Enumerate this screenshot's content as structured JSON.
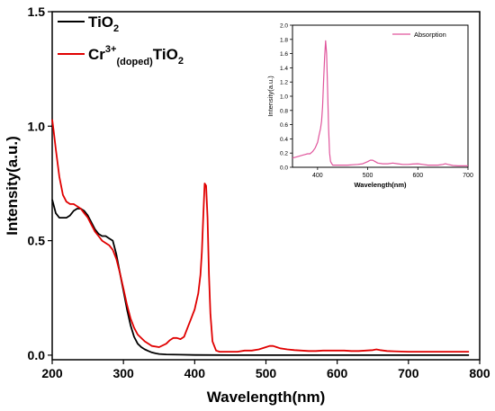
{
  "chart_data": [
    {
      "type": "line",
      "title": "",
      "xlabel": "Wavelength(nm)",
      "ylabel": "Intensity(a.u.)",
      "xlim": [
        200,
        800
      ],
      "ylim": [
        -0.02,
        1.5
      ],
      "xticks": [
        200,
        300,
        400,
        500,
        600,
        700,
        800
      ],
      "yticks": [
        0.0,
        0.5,
        1.0,
        1.5
      ],
      "ytick_labels": [
        "0.0",
        "0.5",
        "1.0",
        "1.5"
      ],
      "grid": false,
      "legend_position": "top-left",
      "series": [
        {
          "legend_main": "TiO",
          "legend_sub": "2",
          "color": "#000000",
          "x": [
            200,
            205,
            210,
            215,
            220,
            225,
            230,
            235,
            240,
            245,
            250,
            255,
            260,
            265,
            270,
            275,
            280,
            285,
            290,
            295,
            300,
            305,
            310,
            315,
            320,
            325,
            330,
            335,
            340,
            345,
            350,
            360,
            380,
            400,
            450,
            500,
            550,
            600,
            650,
            700,
            750,
            785
          ],
          "y": [
            0.68,
            0.62,
            0.6,
            0.6,
            0.6,
            0.61,
            0.63,
            0.64,
            0.64,
            0.63,
            0.61,
            0.58,
            0.55,
            0.53,
            0.52,
            0.52,
            0.51,
            0.5,
            0.44,
            0.36,
            0.28,
            0.2,
            0.13,
            0.08,
            0.05,
            0.035,
            0.025,
            0.018,
            0.012,
            0.008,
            0.005,
            0.003,
            0.002,
            0.001,
            0.0,
            0.0,
            0.0,
            0.0,
            0.0,
            0.0,
            0.0,
            0.0
          ]
        },
        {
          "legend_main": "Cr",
          "legend_sup": "3+",
          "legend_sub": "(doped)",
          "legend_tail_main": "TiO",
          "legend_tail_sub": "2",
          "color": "#e00000",
          "x": [
            200,
            202,
            205,
            210,
            215,
            220,
            225,
            230,
            235,
            240,
            245,
            250,
            255,
            260,
            265,
            270,
            275,
            280,
            285,
            290,
            295,
            300,
            305,
            310,
            315,
            320,
            330,
            340,
            350,
            360,
            365,
            370,
            375,
            380,
            385,
            390,
            395,
            400,
            405,
            408,
            410,
            412,
            414,
            416,
            418,
            420,
            422,
            425,
            430,
            435,
            440,
            450,
            460,
            470,
            480,
            490,
            500,
            505,
            510,
            515,
            520,
            530,
            540,
            550,
            560,
            570,
            580,
            590,
            600,
            610,
            620,
            630,
            640,
            650,
            655,
            660,
            670,
            680,
            700,
            720,
            740,
            760,
            785
          ],
          "y": [
            1.03,
            0.98,
            0.9,
            0.78,
            0.7,
            0.67,
            0.66,
            0.66,
            0.65,
            0.64,
            0.62,
            0.6,
            0.57,
            0.54,
            0.52,
            0.5,
            0.49,
            0.48,
            0.46,
            0.42,
            0.36,
            0.29,
            0.22,
            0.16,
            0.12,
            0.09,
            0.06,
            0.04,
            0.035,
            0.05,
            0.065,
            0.075,
            0.075,
            0.07,
            0.08,
            0.12,
            0.16,
            0.2,
            0.27,
            0.35,
            0.45,
            0.6,
            0.75,
            0.74,
            0.6,
            0.35,
            0.18,
            0.06,
            0.02,
            0.015,
            0.015,
            0.015,
            0.015,
            0.02,
            0.02,
            0.025,
            0.035,
            0.04,
            0.04,
            0.035,
            0.03,
            0.025,
            0.022,
            0.02,
            0.018,
            0.018,
            0.02,
            0.02,
            0.02,
            0.02,
            0.018,
            0.018,
            0.02,
            0.022,
            0.025,
            0.022,
            0.018,
            0.017,
            0.015,
            0.015,
            0.015,
            0.015,
            0.015
          ]
        }
      ]
    },
    {
      "type": "line",
      "title": "",
      "xlabel": "Wavelength(nm)",
      "ylabel": "Intensity(a.u.)",
      "xlim": [
        350,
        700
      ],
      "ylim": [
        0.0,
        2.0
      ],
      "xticks": [
        400,
        500,
        600,
        700
      ],
      "yticks": [
        0.0,
        0.2,
        0.4,
        0.6,
        0.8,
        1.0,
        1.2,
        1.4,
        1.6,
        1.8,
        2.0
      ],
      "ytick_labels": [
        "0.0",
        "0.2",
        "0.4",
        "0.6",
        "0.8",
        "1.0",
        "1.2",
        "1.4",
        "1.6",
        "1.8",
        "2.0"
      ],
      "grid": false,
      "legend_position": "top-right",
      "series": [
        {
          "name": "Absorption",
          "color": "#e0559c",
          "x": [
            350,
            360,
            370,
            375,
            380,
            385,
            390,
            395,
            400,
            403,
            406,
            408,
            410,
            412,
            414,
            416,
            418,
            420,
            422,
            424,
            426,
            430,
            440,
            450,
            460,
            470,
            480,
            490,
            500,
            505,
            510,
            515,
            520,
            530,
            540,
            550,
            560,
            570,
            580,
            590,
            600,
            610,
            620,
            630,
            640,
            650,
            655,
            660,
            670,
            680,
            690,
            700
          ],
          "y": [
            0.13,
            0.15,
            0.17,
            0.18,
            0.19,
            0.19,
            0.22,
            0.27,
            0.35,
            0.45,
            0.55,
            0.65,
            0.85,
            1.2,
            1.55,
            1.78,
            1.6,
            1.1,
            0.55,
            0.2,
            0.08,
            0.03,
            0.03,
            0.03,
            0.03,
            0.035,
            0.04,
            0.05,
            0.08,
            0.1,
            0.1,
            0.08,
            0.06,
            0.05,
            0.05,
            0.06,
            0.05,
            0.04,
            0.04,
            0.045,
            0.05,
            0.04,
            0.03,
            0.03,
            0.03,
            0.04,
            0.05,
            0.04,
            0.025,
            0.02,
            0.02,
            0.02
          ]
        }
      ]
    }
  ]
}
